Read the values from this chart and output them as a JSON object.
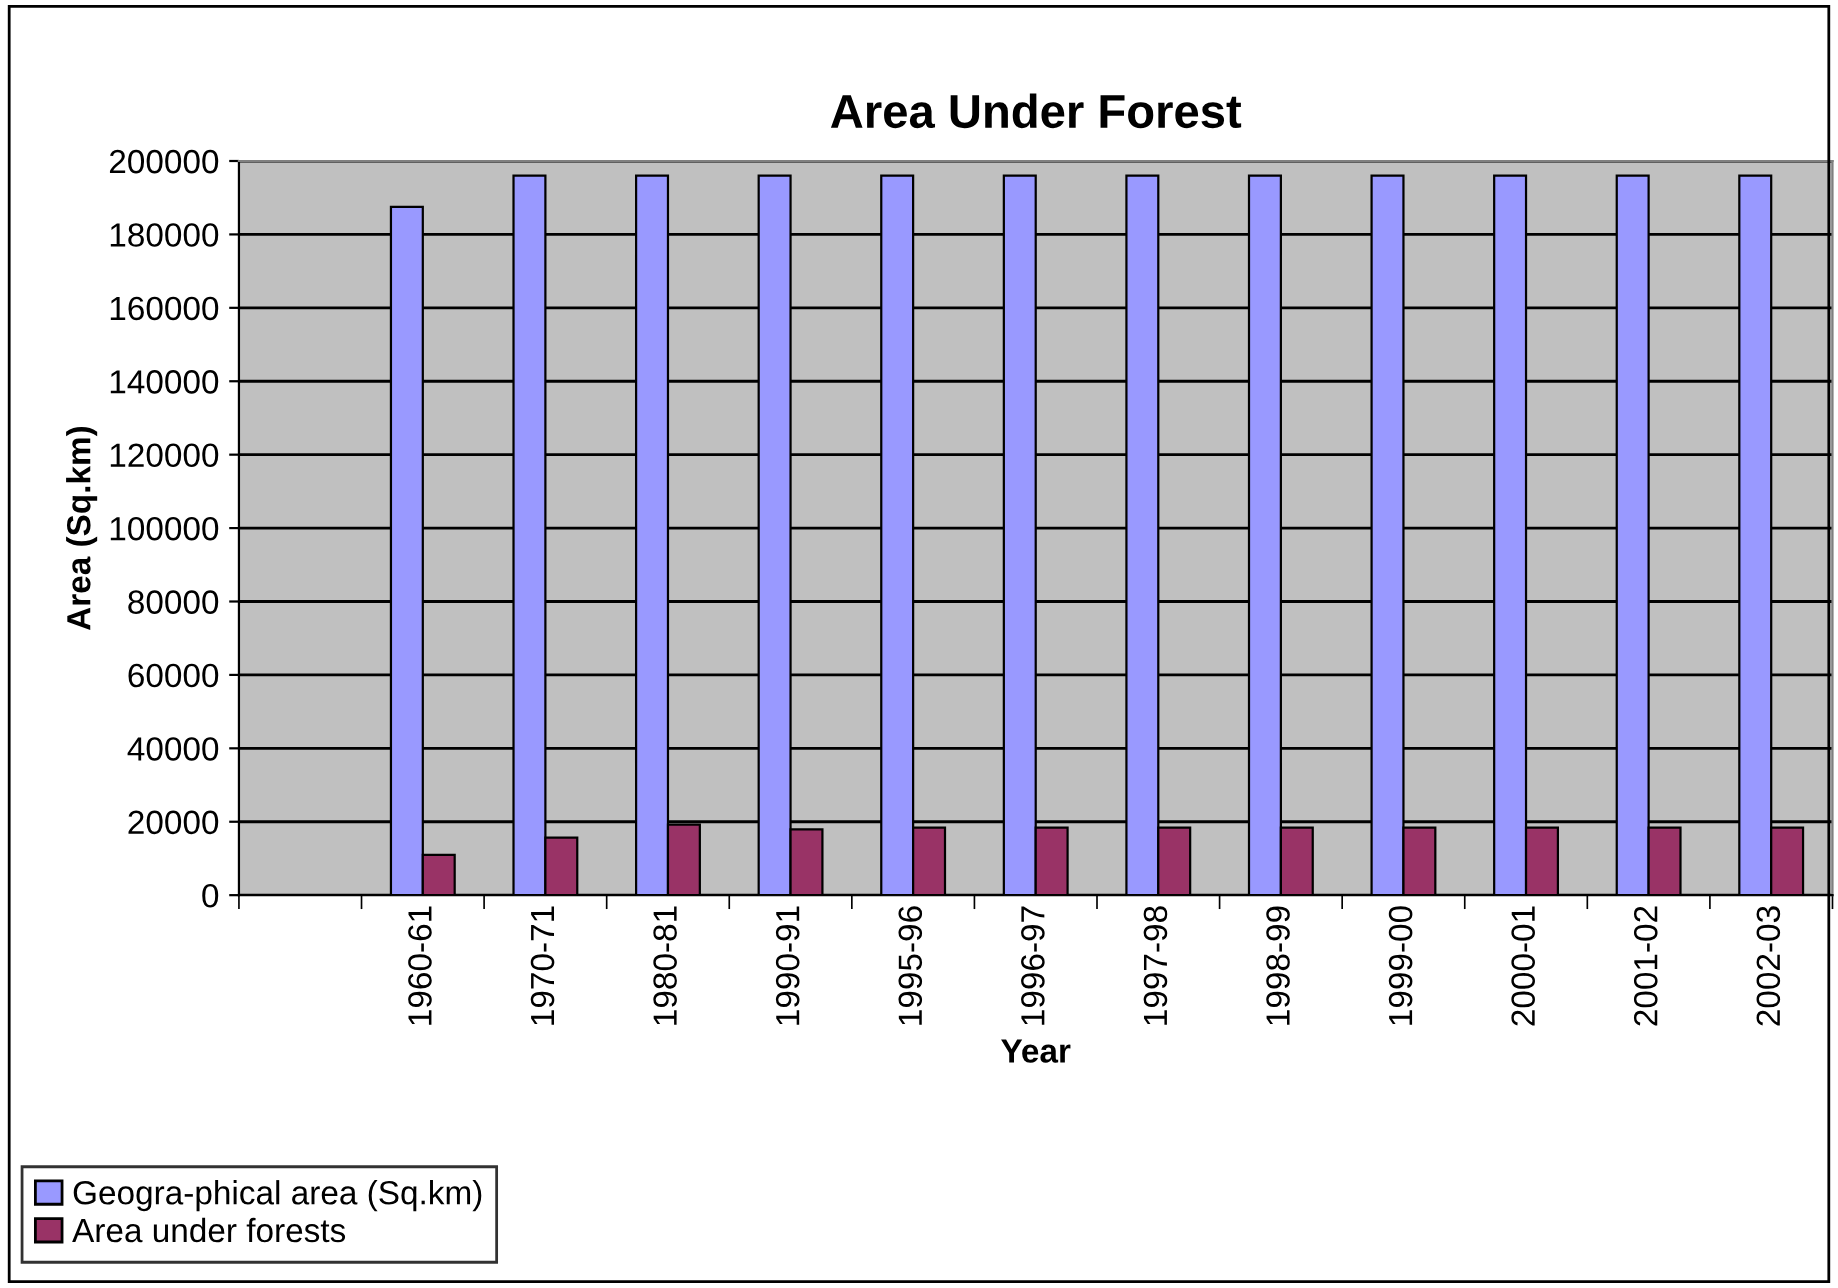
{
  "chart_data": {
    "type": "bar",
    "title": "Area Under Forest",
    "xlabel": "Year",
    "ylabel": "Area (Sq.km)",
    "categories": [
      null,
      "1960-61",
      "1970-71",
      "1980-81",
      "1990-91",
      "1995-96",
      "1996-97",
      "1997-98",
      "1998-99",
      "1999-00",
      "2000-01",
      "2001-02",
      "2002-03"
    ],
    "series": [
      {
        "name": "Geogra-phical area (Sq.km)",
        "color": "#9999ff",
        "values": [
          null,
          187500,
          196000,
          196000,
          196000,
          196000,
          196000,
          196000,
          196000,
          196000,
          196000,
          196000,
          196000
        ]
      },
      {
        "name": "Area under forests",
        "color": "#993366",
        "values": [
          null,
          11000,
          15700,
          19200,
          17900,
          18400,
          18400,
          18400,
          18400,
          18400,
          18400,
          18400,
          18400
        ]
      }
    ],
    "ylim": [
      0,
      200000
    ],
    "yticks": [
      0,
      20000,
      40000,
      60000,
      80000,
      100000,
      120000,
      140000,
      160000,
      180000,
      200000
    ],
    "grid": "y",
    "legend": "bottom left"
  }
}
